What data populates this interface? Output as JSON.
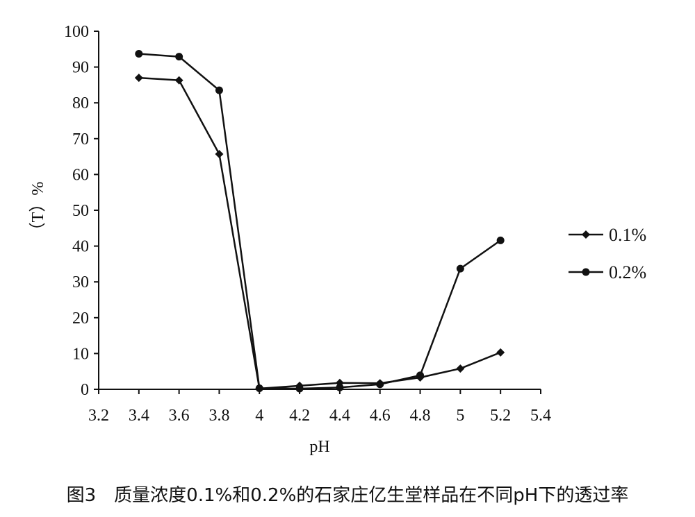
{
  "chart_data": {
    "type": "line",
    "title": "",
    "xlabel": "pH",
    "ylabel": "（T）%",
    "xlim": [
      3.2,
      5.4
    ],
    "ylim": [
      0,
      100
    ],
    "x_ticks": [
      "3.2",
      "3.4",
      "3.6",
      "3.8",
      "4",
      "4.2",
      "4.4",
      "4.6",
      "4.8",
      "5",
      "5.2",
      "5.4"
    ],
    "y_ticks": [
      "0",
      "10",
      "20",
      "30",
      "40",
      "50",
      "60",
      "70",
      "80",
      "90",
      "100"
    ],
    "grid": false,
    "legend_position": "right",
    "series": [
      {
        "name": "0.1%",
        "marker": "diamond",
        "x": [
          3.4,
          3.6,
          3.8,
          4.0,
          4.2,
          4.4,
          4.6,
          4.8,
          5.0,
          5.2
        ],
        "y": [
          87,
          86.3,
          65.7,
          0.2,
          1.0,
          1.8,
          1.7,
          3.3,
          5.8,
          10.3
        ]
      },
      {
        "name": "0.2%",
        "marker": "circle",
        "x": [
          3.4,
          3.6,
          3.8,
          4.0,
          4.2,
          4.4,
          4.6,
          4.8,
          5.0,
          5.2
        ],
        "y": [
          93.7,
          92.9,
          83.5,
          0.3,
          0.2,
          0.5,
          1.4,
          3.9,
          33.7,
          41.6
        ]
      }
    ]
  },
  "caption": "图3　质量浓度0.1%和0.2%的石家庄亿生堂样品在不同pH下的透过率",
  "colors": {
    "line": "#111111",
    "background": "#ffffff"
  }
}
